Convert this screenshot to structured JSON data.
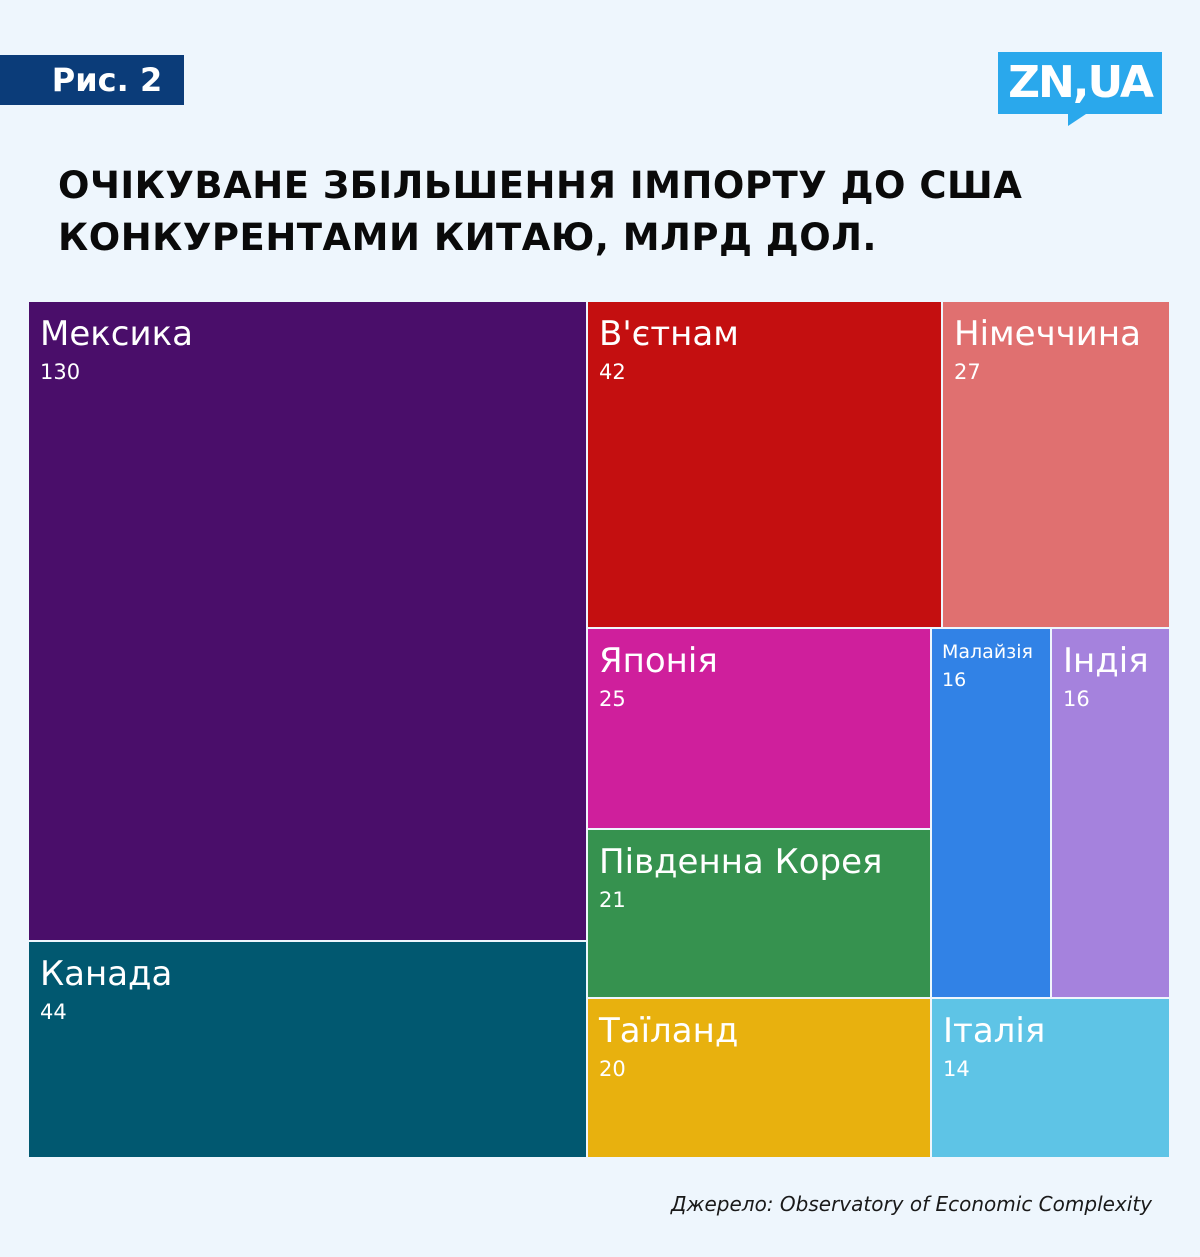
{
  "badge": "Рис. 2",
  "logo": "ZN,UA",
  "title_lines": [
    "ОЧІКУВАНЕ ЗБІЛЬШЕННЯ ІМПОРТУ ДО США",
    "КОНКУРЕНТАМИ КИТАЮ, МЛРД ДОЛ."
  ],
  "source": "Джерело: Observatory of Economic Complexity",
  "colors": {
    "background": "#eef6fd",
    "badge": "#0b3c79",
    "logo": "#2aa8ec"
  },
  "chart_data": {
    "type": "treemap",
    "title": "ОЧІКУВАНЕ ЗБІЛЬШЕННЯ ІМПОРТУ ДО США КОНКУРЕНТАМИ КИТАЮ, МЛРД ДОЛ.",
    "items": [
      {
        "name": "Мексика",
        "value": 130,
        "color": "#4a0e6a"
      },
      {
        "name": "Канада",
        "value": 44,
        "color": "#015870"
      },
      {
        "name": "В'єтнам",
        "value": 42,
        "color": "#c40f10"
      },
      {
        "name": "Німеччина",
        "value": 27,
        "color": "#e07070"
      },
      {
        "name": "Японія",
        "value": 25,
        "color": "#cf1f9c"
      },
      {
        "name": "Південна Корея",
        "value": 21,
        "color": "#36924f"
      },
      {
        "name": "Таїланд",
        "value": 20,
        "color": "#e8b10e"
      },
      {
        "name": "Малайзія",
        "value": 16,
        "color": "#3182e6"
      },
      {
        "name": "Індія",
        "value": 16,
        "color": "#a582dd"
      },
      {
        "name": "Італія",
        "value": 14,
        "color": "#5ec4e6"
      }
    ]
  }
}
